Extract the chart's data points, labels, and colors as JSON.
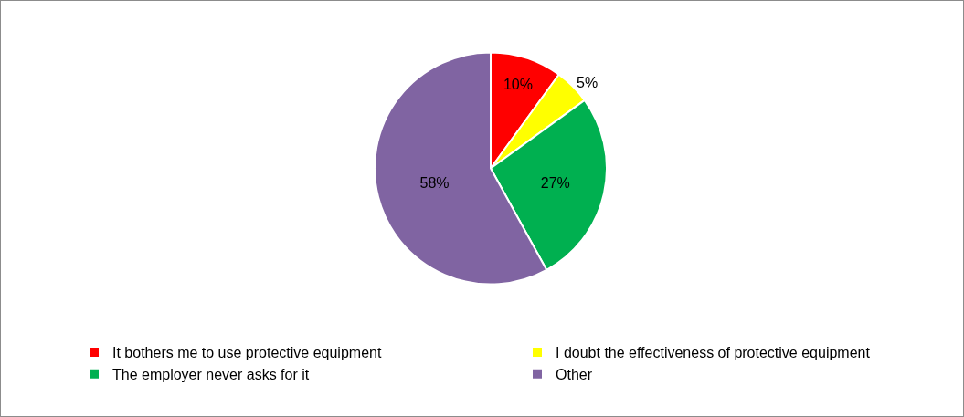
{
  "chart_data": {
    "type": "pie",
    "categories": [
      "It bothers me to use protective equipment",
      "I doubt the effectiveness of protective equipment",
      "The employer never asks for it",
      "Other"
    ],
    "values": [
      10,
      5,
      27,
      58
    ],
    "colors": [
      "#ff0000",
      "#ffff00",
      "#00b050",
      "#8064a2"
    ],
    "value_labels": [
      "10%",
      "5%",
      "27%",
      "58%"
    ],
    "legend": "bottom"
  }
}
